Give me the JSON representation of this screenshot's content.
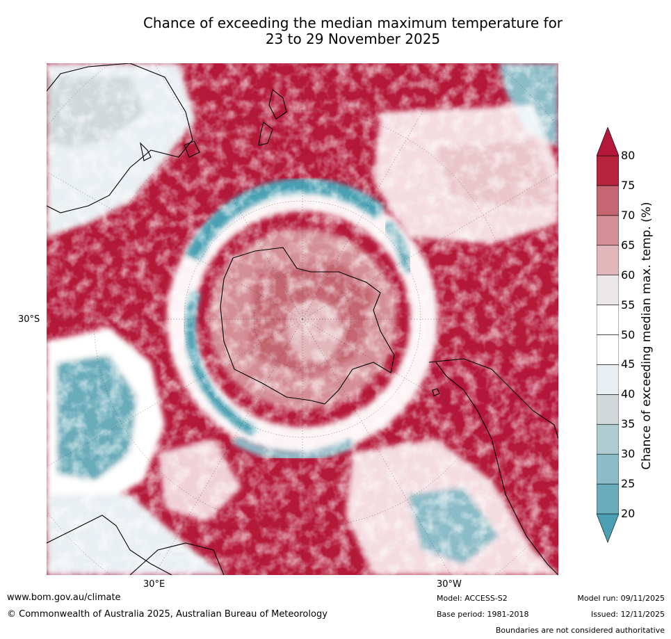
{
  "title": {
    "line1": "Chance of exceeding the median maximum temperature for",
    "line2": "23 to 29 November 2025"
  },
  "map": {
    "projection": "south-polar-stereographic",
    "labels": {
      "lat_30s": "30°S",
      "lon_30e": "30°E",
      "lon_30w": "30°W"
    }
  },
  "colorbar": {
    "title": "Chance of exceeding median max. temp. (%)",
    "ticks": [
      "20",
      "25",
      "30",
      "35",
      "40",
      "45",
      "50",
      "55",
      "60",
      "65",
      "70",
      "75",
      "80"
    ],
    "colors": [
      "#4aa0b2",
      "#6aacba",
      "#8cbcc8",
      "#aecbd0",
      "#d0d8da",
      "#e9eff2",
      "#ffffff",
      "#ffffff",
      "#ece8ea",
      "#e2b7bc",
      "#d48e96",
      "#c46672",
      "#b5243b",
      "#b5193a"
    ],
    "extend": "both"
  },
  "footer": {
    "url": "www.bom.gov.au/climate",
    "copyright": "© Commonwealth of Australia 2025, Australian Bureau of Meteorology",
    "model": "Model: ACCESS-S2",
    "base_period": "Base period: 1981-2018",
    "model_run": "Model run: 09/11/2025",
    "issued": "Issued: 12/11/2025",
    "disclaimer": "Boundaries are not considered authoritative"
  }
}
